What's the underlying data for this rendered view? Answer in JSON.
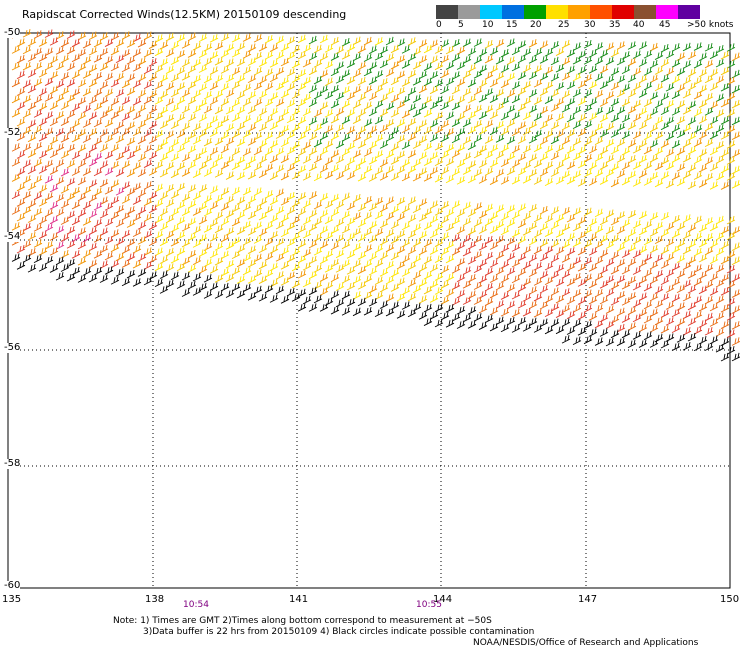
{
  "title": "Rapidscat Corrected Winds(12.5KM) 20150109 descending",
  "colorbar": {
    "labels": [
      "0",
      "5",
      "10",
      "15",
      "20",
      "25",
      "30",
      "35",
      "40",
      "45",
      ">50 knots"
    ],
    "colors": [
      "#444444",
      "#9a9a9a",
      "#00c8ff",
      "#0070e0",
      "#00a000",
      "#ffe000",
      "#ffa000",
      "#ff5000",
      "#e00000",
      "#8a5030",
      "#ff00ff",
      "#6000a0"
    ]
  },
  "axes": {
    "lon_labels": [
      "135",
      "138",
      "141",
      "144",
      "147",
      "150"
    ],
    "lat_labels": [
      "-50",
      "-52",
      "-54",
      "-56",
      "-58",
      "-60"
    ]
  },
  "times": [
    "10:54",
    "10:55"
  ],
  "notes": [
    "Note: 1) Times are GMT 2)Times along bottom correspond to measurement at −50S",
    "3)Data buffer is 22 hrs from 20150109 4) Black circles indicate possible contamination"
  ],
  "credit": "NOAA/NESDIS/Office of Research and Applications",
  "barb_colors": {
    "light_yellow": "#ffe600",
    "yellow": "#f5c800",
    "orange": "#f29400",
    "dark_orange": "#e86a10",
    "red": "#e03a2a",
    "pink": "#e0308a",
    "green": "#128a12",
    "contamination": "#000000"
  }
}
